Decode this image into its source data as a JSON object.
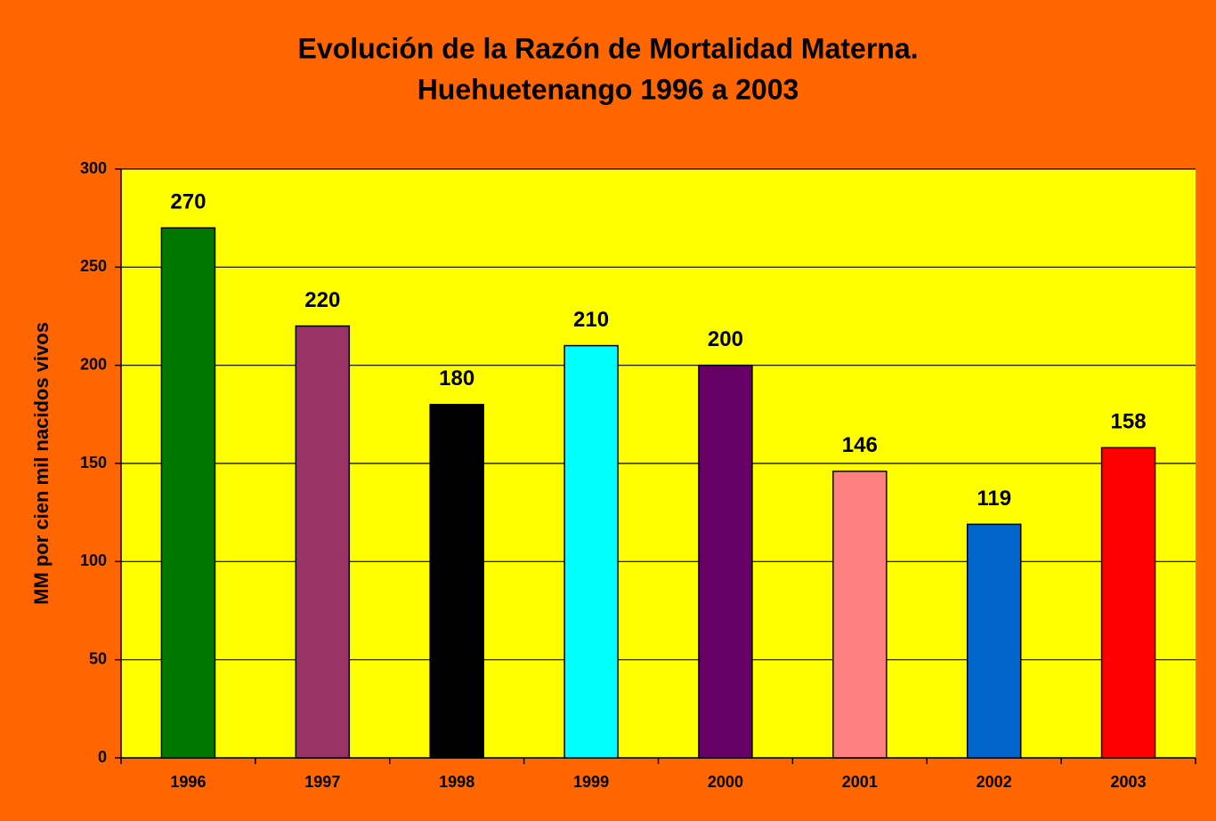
{
  "chart_data": {
    "type": "bar",
    "title": [
      "Evolución de la Razón de Mortalidad Materna.",
      "Huehuetenango 1996 a 2003"
    ],
    "ylabel": "MM por cien mil nacidos vivos",
    "categories": [
      "1996",
      "1997",
      "1998",
      "1999",
      "2000",
      "2001",
      "2002",
      "2003"
    ],
    "values": [
      270,
      220,
      180,
      210,
      200,
      146,
      119,
      158
    ],
    "colors": [
      "#007800",
      "#993366",
      "#000000",
      "#00ffff",
      "#660066",
      "#ff8080",
      "#0066cc",
      "#ff0000"
    ],
    "ylim": [
      0,
      300
    ],
    "yticks": [
      0,
      50,
      100,
      150,
      200,
      250,
      300
    ],
    "grid": true
  }
}
